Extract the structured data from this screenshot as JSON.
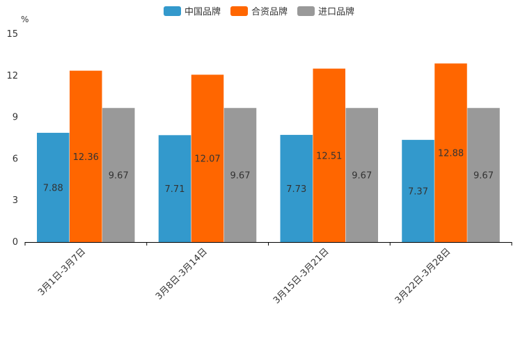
{
  "chart_data": {
    "type": "bar",
    "unit": "%",
    "categories": [
      "3月1日-3月7日",
      "3月8日-3月14日",
      "3月15日-3月21日",
      "3月22日-3月28日"
    ],
    "series": [
      {
        "name": "中国品牌",
        "color": "#3399cc",
        "values": [
          7.88,
          7.71,
          7.73,
          7.37
        ]
      },
      {
        "name": "合资品牌",
        "color": "#ff6600",
        "values": [
          12.36,
          12.07,
          12.51,
          12.88
        ]
      },
      {
        "name": "进口品牌",
        "color": "#999999",
        "values": [
          9.67,
          9.67,
          9.67,
          9.67
        ]
      }
    ],
    "yticks": [
      0,
      3,
      6,
      9,
      12,
      15
    ],
    "ylim": [
      0,
      15
    ],
    "legend_position": "top-center"
  }
}
